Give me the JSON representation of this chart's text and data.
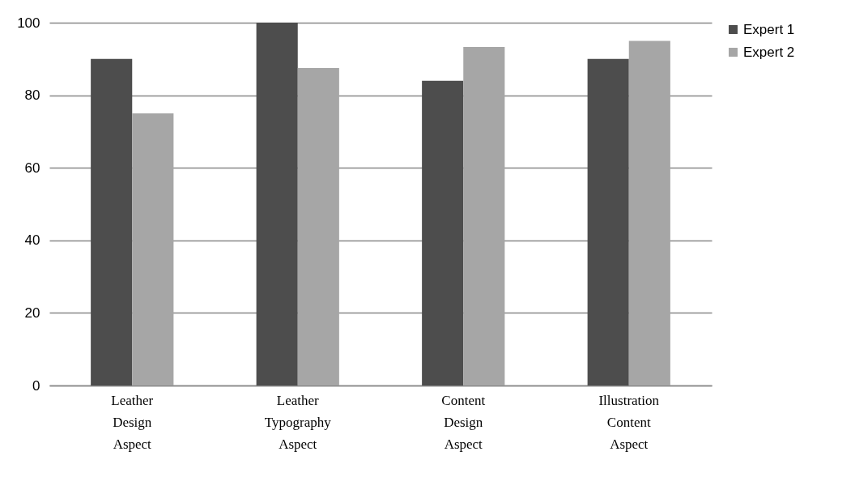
{
  "chart_data": {
    "type": "bar",
    "categories": [
      "Leather Design Aspect",
      "Leather Typography Aspect",
      "Content Design Aspect",
      "Illustration Content Aspect"
    ],
    "series": [
      {
        "name": "Expert 1",
        "color": "#4d4d4d",
        "values": [
          90,
          100,
          84,
          90
        ]
      },
      {
        "name": "Expert 2",
        "color": "#a6a6a6",
        "values": [
          75,
          87.5,
          93.3,
          95
        ]
      }
    ],
    "ylim": [
      0,
      100
    ],
    "yticks": [
      0,
      20,
      40,
      60,
      80,
      100
    ],
    "grid": "y",
    "legend": "right"
  }
}
